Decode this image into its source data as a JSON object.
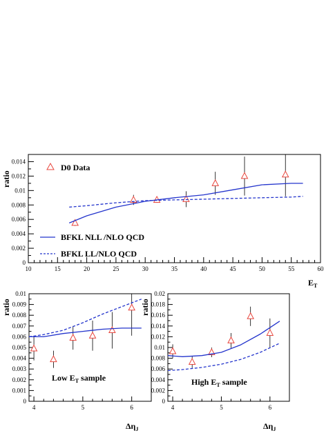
{
  "chart_data": [
    {
      "type": "line",
      "panel": "top",
      "ylabel": "ratio",
      "xlabel_main": "E",
      "xlabel_sub": "T",
      "xlim": [
        10,
        60
      ],
      "ylim": [
        0,
        0.015
      ],
      "xticks": [
        10,
        15,
        20,
        25,
        30,
        35,
        40,
        45,
        50,
        55,
        60
      ],
      "yticks": [
        0,
        0.002,
        0.004,
        0.006,
        0.008,
        0.01,
        0.012,
        0.014
      ],
      "ytick_labels": [
        "0",
        "0.002",
        "0.004",
        "0.006",
        "0.008",
        "0.01",
        "0.012",
        "0.014"
      ],
      "legend": {
        "data": "D0 Data",
        "solid": "BFKL NLL /NLO QCD",
        "dashed": "BFKL LL/NLO QCD"
      },
      "series": [
        {
          "name": "D0 Data",
          "style": "triangle",
          "color": "#e8453c",
          "points": [
            {
              "x": 18,
              "y": 0.0055,
              "err": 0.0004
            },
            {
              "x": 28,
              "y": 0.0087,
              "err": 0.0007
            },
            {
              "x": 32,
              "y": 0.0087,
              "err": 0.0004
            },
            {
              "x": 37,
              "y": 0.0088,
              "err": 0.0011
            },
            {
              "x": 42,
              "y": 0.011,
              "err": 0.0016
            },
            {
              "x": 47,
              "y": 0.012,
              "err": 0.0027
            },
            {
              "x": 54,
              "y": 0.0122,
              "err": 0.003
            }
          ]
        },
        {
          "name": "BFKL NLL /NLO QCD",
          "style": "solid",
          "color": "#2233cc",
          "x": [
            17,
            20,
            25,
            30,
            35,
            40,
            45,
            50,
            55,
            57
          ],
          "y": [
            0.0055,
            0.0065,
            0.0077,
            0.0085,
            0.009,
            0.0094,
            0.0101,
            0.0108,
            0.011,
            0.011
          ]
        },
        {
          "name": "BFKL LL/NLO QCD",
          "style": "dashed",
          "color": "#2233cc",
          "x": [
            17,
            20,
            25,
            30,
            35,
            40,
            45,
            50,
            55,
            57
          ],
          "y": [
            0.0077,
            0.0079,
            0.0083,
            0.0086,
            0.0087,
            0.0088,
            0.0089,
            0.009,
            0.0091,
            0.0092
          ]
        }
      ]
    },
    {
      "type": "line",
      "panel": "bottom-left",
      "ylabel": "ratio",
      "xlabel_main": "Δη",
      "xlabel_sub": "J",
      "annotation_main": "Low E",
      "annotation_sub": "T",
      "annotation_tail": " sample",
      "xlim": [
        3.9,
        6.4
      ],
      "ylim": [
        0,
        0.01
      ],
      "xticks": [
        4,
        5,
        6
      ],
      "yticks": [
        0,
        0.001,
        0.002,
        0.003,
        0.004,
        0.005,
        0.006,
        0.007,
        0.008,
        0.009,
        0.01
      ],
      "ytick_labels": [
        "0",
        "0.001",
        "0.002",
        "0.003",
        "0.004",
        "0.005",
        "0.006",
        "0.007",
        "0.008",
        "0.009",
        "0.01"
      ],
      "series": [
        {
          "name": "D0 Data",
          "style": "triangle",
          "color": "#e8453c",
          "points": [
            {
              "x": 4.0,
              "y": 0.0049,
              "err": 0.0011
            },
            {
              "x": 4.4,
              "y": 0.0039,
              "err": 0.0008
            },
            {
              "x": 4.8,
              "y": 0.0059,
              "err": 0.0011
            },
            {
              "x": 5.2,
              "y": 0.0061,
              "err": 0.0014
            },
            {
              "x": 5.6,
              "y": 0.0066,
              "err": 0.0017
            },
            {
              "x": 6.0,
              "y": 0.0087,
              "err": 0.0026
            }
          ]
        },
        {
          "name": "BFKL NLL /NLO QCD",
          "style": "solid",
          "color": "#2233cc",
          "x": [
            3.9,
            4.2,
            4.6,
            5.0,
            5.4,
            5.8,
            6.2
          ],
          "y": [
            0.006,
            0.006,
            0.0063,
            0.0065,
            0.0067,
            0.0068,
            0.0068
          ]
        },
        {
          "name": "BFKL LL/NLO QCD",
          "style": "dashed",
          "color": "#2233cc",
          "x": [
            3.9,
            4.2,
            4.6,
            5.0,
            5.4,
            5.8,
            6.2
          ],
          "y": [
            0.006,
            0.0062,
            0.0066,
            0.0073,
            0.0081,
            0.0088,
            0.0095
          ]
        }
      ]
    },
    {
      "type": "line",
      "panel": "bottom-right",
      "ylabel": "ratio",
      "xlabel_main": "Δη",
      "xlabel_sub": "J",
      "annotation_main": "High E",
      "annotation_sub": "T",
      "annotation_tail": " sample",
      "xlim": [
        3.9,
        6.4
      ],
      "ylim": [
        0,
        0.02
      ],
      "xticks": [
        4,
        5,
        6
      ],
      "yticks": [
        0,
        0.002,
        0.004,
        0.006,
        0.008,
        0.01,
        0.012,
        0.014,
        0.016,
        0.018,
        0.02
      ],
      "ytick_labels": [
        "0",
        "0.002",
        "0.004",
        "0.006",
        "0.008",
        "0.01",
        "0.012",
        "0.014",
        "0.016",
        "0.018",
        "0.02"
      ],
      "series": [
        {
          "name": "D0 Data",
          "style": "triangle",
          "color": "#e8453c",
          "points": [
            {
              "x": 4.0,
              "y": 0.0093,
              "err": 0.0013
            },
            {
              "x": 4.4,
              "y": 0.0073,
              "err": 0.0011
            },
            {
              "x": 4.8,
              "y": 0.0091,
              "err": 0.0009
            },
            {
              "x": 5.2,
              "y": 0.0113,
              "err": 0.0014
            },
            {
              "x": 5.6,
              "y": 0.0158,
              "err": 0.0018
            },
            {
              "x": 6.0,
              "y": 0.0127,
              "err": 0.0027
            }
          ]
        },
        {
          "name": "BFKL NLL /NLO QCD",
          "style": "solid",
          "color": "#2233cc",
          "x": [
            3.9,
            4.2,
            4.6,
            5.0,
            5.4,
            5.8,
            6.2
          ],
          "y": [
            0.0085,
            0.0083,
            0.0085,
            0.0091,
            0.0105,
            0.0125,
            0.0149
          ]
        },
        {
          "name": "BFKL LL/NLO QCD",
          "style": "dashed",
          "color": "#2233cc",
          "x": [
            3.9,
            4.2,
            4.6,
            5.0,
            5.4,
            5.8,
            6.2
          ],
          "y": [
            0.0057,
            0.0059,
            0.0063,
            0.0069,
            0.0078,
            0.0091,
            0.0108
          ]
        }
      ]
    }
  ]
}
